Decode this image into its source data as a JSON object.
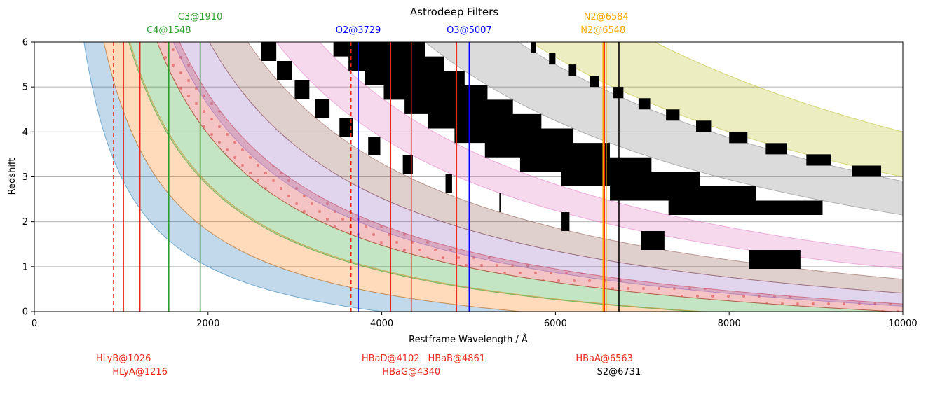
{
  "chart_data": {
    "type": "area",
    "title": "Astrodeep Filters",
    "xlabel": "Restframe Wavelength / Å",
    "ylabel": "Redshift",
    "xlim": [
      0,
      10000
    ],
    "ylim": [
      0,
      6
    ],
    "xticks": [
      0,
      2000,
      4000,
      6000,
      8000,
      10000
    ],
    "yticks": [
      0,
      1,
      2,
      3,
      4,
      5,
      6
    ],
    "grid": "horizontal",
    "filter_bands": [
      {
        "color": "#1f77b4",
        "lambda_min": 4000,
        "lambda_max": 5600
      },
      {
        "color": "#ff7f0e",
        "lambda_min": 5600,
        "lambda_max": 7700
      },
      {
        "color": "#2ca02c",
        "lambda_min": 7600,
        "lambda_max": 9900
      },
      {
        "color": "#d62728",
        "lambda_min": 9900,
        "lambda_max": 11700,
        "hatch": "dots"
      },
      {
        "color": "#9467bd",
        "lambda_min": 11200,
        "lambda_max": 14100
      },
      {
        "color": "#8c564b",
        "lambda_min": 14100,
        "lambda_max": 17200
      },
      {
        "color": "#e377c2",
        "lambda_min": 19500,
        "lambda_max": 23000
      },
      {
        "color": "#7f7f7f",
        "lambda_min": 31500,
        "lambda_max": 39000
      },
      {
        "color": "#bcbd22",
        "lambda_min": 40000,
        "lambda_max": 50000
      }
    ],
    "gaps": [
      {
        "lambda_min": 17200,
        "lambda_max": 19500
      },
      {
        "lambda_min": 23000,
        "lambda_max": 31500
      },
      {
        "lambda_min": 39000,
        "lambda_max": 40000
      }
    ],
    "lines_top": [
      {
        "label": "C4@1548",
        "wavelength": 1548,
        "color": "#2ca02c",
        "style": "solid"
      },
      {
        "label": "C3@1910",
        "wavelength": 1910,
        "color": "#2ca02c",
        "style": "solid"
      },
      {
        "label": "O2@3729",
        "wavelength": 3729,
        "color": "#0000ff",
        "style": "solid"
      },
      {
        "label": "O3@5007",
        "wavelength": 5007,
        "color": "#0000ff",
        "style": "solid"
      },
      {
        "label": "N2@6548",
        "wavelength": 6548,
        "color": "#ffa500",
        "style": "solid"
      },
      {
        "label": "N2@6584",
        "wavelength": 6584,
        "color": "#ffa500",
        "style": "solid"
      }
    ],
    "lines_bottom": [
      {
        "label": "HLyB@1026",
        "wavelength": 1026,
        "color": "#e8291c",
        "style": "solid"
      },
      {
        "label": "HLyA@1216",
        "wavelength": 1216,
        "color": "#e8291c",
        "style": "solid"
      },
      {
        "label": "HBaD@4102",
        "wavelength": 4102,
        "color": "#e8291c",
        "style": "solid"
      },
      {
        "label": "HBaG@4340",
        "wavelength": 4340,
        "color": "#e8291c",
        "style": "solid"
      },
      {
        "label": "HBaB@4861",
        "wavelength": 4861,
        "color": "#e8291c",
        "style": "solid"
      },
      {
        "label": "HBaA@6563",
        "wavelength": 6563,
        "color": "#e8291c",
        "style": "solid"
      },
      {
        "label": "S2@6731",
        "wavelength": 6731,
        "color": "#000000",
        "style": "solid"
      }
    ],
    "edges": [
      {
        "wavelength": 912,
        "color": "#e8291c",
        "style": "dashed"
      },
      {
        "wavelength": 3646,
        "color": "#e8291c",
        "style": "dashed"
      }
    ]
  }
}
